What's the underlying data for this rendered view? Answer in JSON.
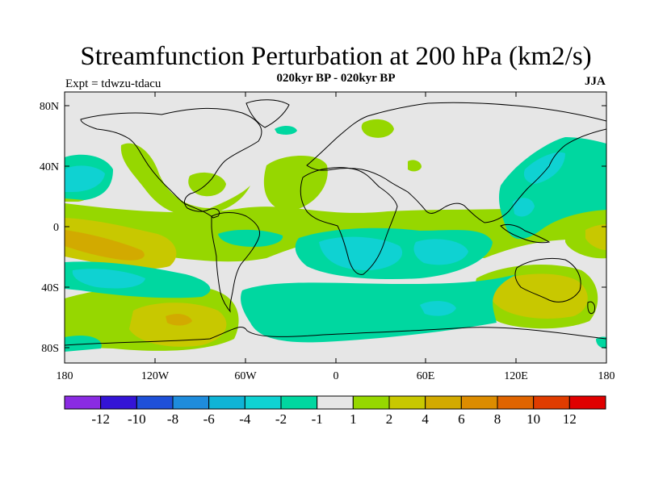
{
  "title": "Streamfunction Perturbation at 200 hPa (km2/s)",
  "subtitle": "020kyr BP - 020kyr BP",
  "expt": "Expt = tdwzu-tdacu",
  "season": "JJA",
  "map": {
    "projection": "cylindrical equidistant",
    "lon_range": [
      -180,
      180
    ],
    "lat_range": [
      -90,
      90
    ],
    "background_color": "#e6e6e6",
    "coastline_color": "#000000",
    "lat_ticks": [
      "80N",
      "40N",
      "0",
      "40S",
      "80S"
    ],
    "lon_ticks": [
      "180",
      "120W",
      "60W",
      "0",
      "60E",
      "120E",
      "180"
    ]
  },
  "colorbar": {
    "colors": [
      "#8a2be2",
      "#3414d6",
      "#1e50d8",
      "#1e8cdc",
      "#0fb4d6",
      "#0fd2d2",
      "#00d7a0",
      "#e6e6e6",
      "#96d700",
      "#c8c800",
      "#d2aa00",
      "#dc8c00",
      "#e06400",
      "#e03c00",
      "#e00000"
    ],
    "labels": [
      "-12",
      "-10",
      "-8",
      "-6",
      "-4",
      "-2",
      "-1",
      "1",
      "2",
      "4",
      "6",
      "8",
      "10",
      "12"
    ]
  }
}
